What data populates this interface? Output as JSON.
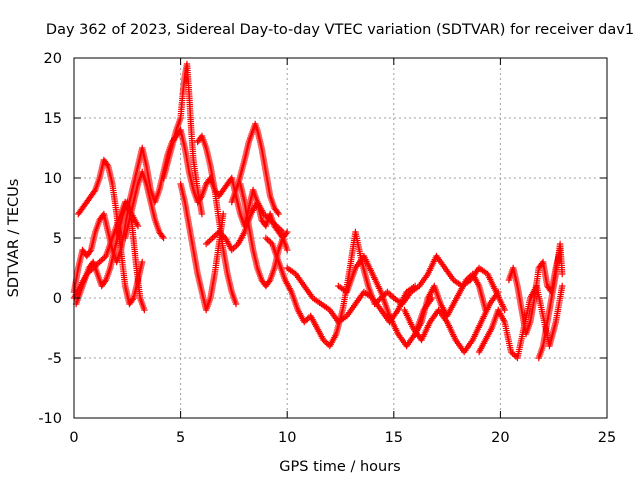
{
  "chart_data": {
    "type": "scatter",
    "title": "Day 362 of 2023, Sidereal Day-to-day VTEC variation (SDTVAR) for receiver dav1",
    "xlabel": "GPS time / hours",
    "ylabel": "SDTVAR / TECUs",
    "xlim": [
      0,
      25
    ],
    "ylim": [
      -10,
      20
    ],
    "xticks": [
      0,
      5,
      10,
      15,
      20,
      25
    ],
    "yticks": [
      -10,
      -5,
      0,
      5,
      10,
      15,
      20
    ],
    "grid": true,
    "marker": "+",
    "series": [
      {
        "name": "SDTVAR",
        "color": "#ff0000",
        "tracks": [
          {
            "x": [
              0.0,
              0.2,
              0.4,
              0.6,
              0.8,
              1.0,
              1.2,
              1.4,
              1.6,
              1.8,
              2.0,
              2.2,
              2.4,
              2.6,
              2.8,
              3.0,
              3.2,
              3.4,
              3.6,
              3.8,
              4.0,
              4.2,
              4.4,
              4.6,
              4.8,
              5.0,
              5.2,
              5.4,
              5.6,
              5.8,
              6.0,
              6.2,
              6.4,
              6.6,
              6.8,
              7.0,
              7.2,
              7.4,
              7.6,
              7.8,
              8.0,
              8.2,
              8.4,
              8.6,
              8.8,
              9.0,
              9.2,
              9.4,
              9.6,
              9.8,
              10.0
            ],
            "y": [
              0.5,
              2.5,
              4.0,
              3.5,
              4.0,
              5.5,
              6.5,
              7.0,
              5.5,
              4.0,
              3.0,
              4.0,
              6.0,
              8.0,
              9.5,
              11.0,
              12.5,
              11.0,
              9.0,
              8.0,
              9.0,
              10.5,
              12.0,
              13.0,
              13.5,
              14.0,
              12.5,
              10.5,
              9.0,
              8.0,
              8.5,
              9.5,
              10.0,
              9.0,
              8.5,
              9.0,
              9.5,
              10.0,
              8.5,
              7.0,
              6.0,
              7.5,
              9.0,
              8.0,
              6.5,
              6.0,
              7.0,
              6.0,
              5.5,
              5.0,
              4.0
            ]
          },
          {
            "x": [
              0.2,
              0.4,
              0.6,
              0.8,
              1.0,
              1.2,
              1.4,
              1.6,
              1.8,
              2.0,
              2.2,
              2.4,
              2.6,
              2.8,
              3.0,
              3.2
            ],
            "y": [
              7.0,
              7.5,
              8.0,
              8.5,
              9.0,
              10.0,
              11.5,
              11.0,
              9.5,
              7.0,
              4.0,
              1.0,
              -0.5,
              0.0,
              1.5,
              3.0
            ]
          },
          {
            "x": [
              0.1,
              0.3,
              0.5,
              0.7,
              0.9,
              1.1,
              1.3,
              1.5,
              1.7,
              1.9,
              2.1,
              2.3,
              2.5,
              2.7,
              2.9,
              3.1,
              3.3
            ],
            "y": [
              -0.5,
              0.5,
              1.5,
              2.5,
              3.0,
              2.0,
              1.0,
              1.5,
              2.5,
              4.0,
              5.5,
              7.0,
              8.0,
              6.5,
              3.0,
              0.0,
              -1.0
            ]
          },
          {
            "x": [
              0.0,
              0.3,
              0.6,
              0.9,
              1.2,
              1.5,
              1.8,
              2.1,
              2.4,
              2.7,
              3.0
            ],
            "y": [
              0.0,
              1.0,
              2.0,
              2.5,
              3.0,
              3.5,
              5.0,
              6.5,
              8.0,
              7.0,
              6.0
            ]
          },
          {
            "x": [
              2.4,
              2.6,
              2.8,
              3.0,
              3.2,
              3.4,
              3.6,
              3.8,
              4.0,
              4.2
            ],
            "y": [
              5.0,
              6.5,
              8.0,
              9.5,
              10.5,
              9.5,
              8.0,
              6.5,
              5.5,
              5.0
            ]
          },
          {
            "x": [
              4.2,
              4.5,
              4.8,
              5.0,
              5.1,
              5.2,
              5.3,
              5.4,
              5.5,
              5.6,
              5.8,
              6.0
            ],
            "y": [
              10.0,
              12.0,
              14.0,
              15.0,
              17.0,
              18.5,
              19.5,
              17.0,
              14.0,
              11.5,
              9.0,
              7.0
            ]
          },
          {
            "x": [
              5.0,
              5.2,
              5.4,
              5.6,
              5.8,
              6.0,
              6.2,
              6.4,
              6.6,
              6.8,
              7.0
            ],
            "y": [
              9.5,
              8.0,
              6.0,
              4.0,
              2.0,
              0.5,
              -1.0,
              0.0,
              2.0,
              4.5,
              7.0
            ]
          },
          {
            "x": [
              5.8,
              6.0,
              6.2,
              6.4,
              6.6,
              6.8,
              7.0,
              7.2,
              7.4,
              7.6
            ],
            "y": [
              13.0,
              13.5,
              12.5,
              11.0,
              9.0,
              6.5,
              4.0,
              2.0,
              0.5,
              -0.5
            ]
          },
          {
            "x": [
              6.2,
              6.5,
              6.8,
              7.1,
              7.4,
              7.7,
              8.0,
              8.3,
              8.6,
              8.9,
              9.2,
              9.5,
              9.8
            ],
            "y": [
              4.5,
              5.0,
              5.5,
              5.0,
              4.0,
              4.5,
              5.5,
              7.0,
              8.0,
              7.0,
              6.5,
              6.0,
              5.5
            ]
          },
          {
            "x": [
              7.4,
              7.7,
              8.0,
              8.2,
              8.4,
              8.5,
              8.6,
              8.8,
              9.0,
              9.2,
              9.4,
              9.6
            ],
            "y": [
              8.0,
              9.5,
              11.5,
              13.0,
              14.0,
              14.5,
              14.0,
              12.5,
              10.5,
              8.5,
              7.5,
              7.0
            ]
          },
          {
            "x": [
              7.8,
              8.0,
              8.2,
              8.4,
              8.6,
              8.8,
              9.0,
              9.2,
              9.4,
              9.6,
              9.8,
              10.0
            ],
            "y": [
              9.5,
              8.0,
              6.0,
              4.0,
              2.5,
              1.5,
              1.0,
              1.5,
              2.5,
              4.0,
              5.0,
              5.5
            ]
          },
          {
            "x": [
              9.0,
              9.3,
              9.6,
              9.9,
              10.2,
              10.5,
              10.8,
              11.1,
              11.4,
              11.7,
              12.0,
              12.3,
              12.6,
              12.9,
              13.2,
              13.5,
              13.8,
              14.1,
              14.4,
              14.7,
              15.0
            ],
            "y": [
              5.0,
              4.5,
              3.0,
              1.5,
              0.5,
              -1.0,
              -2.0,
              -1.5,
              -2.5,
              -3.5,
              -4.0,
              -3.0,
              -1.0,
              2.0,
              5.5,
              3.0,
              1.0,
              -0.5,
              0.0,
              0.5,
              0.0
            ]
          },
          {
            "x": [
              10.0,
              10.4,
              10.8,
              11.2,
              11.6,
              12.0,
              12.4,
              12.8,
              13.2,
              13.6,
              14.0,
              14.4,
              14.8,
              15.2,
              15.6,
              16.0
            ],
            "y": [
              2.5,
              2.0,
              1.0,
              0.0,
              -0.5,
              -1.0,
              -2.0,
              -1.5,
              -0.5,
              0.5,
              0.0,
              -1.0,
              -2.0,
              -1.0,
              0.5,
              1.0
            ]
          },
          {
            "x": [
              12.4,
              12.8,
              13.2,
              13.6,
              14.0,
              14.4,
              14.8,
              15.2,
              15.6,
              16.0,
              16.4,
              16.8
            ],
            "y": [
              1.0,
              0.5,
              2.5,
              3.5,
              2.0,
              0.5,
              -1.5,
              -3.0,
              -4.0,
              -3.0,
              -1.0,
              0.0
            ]
          },
          {
            "x": [
              15.0,
              15.4,
              15.8,
              16.2,
              16.6,
              17.0,
              17.4,
              17.8,
              18.2,
              18.6,
              19.0,
              19.4,
              19.8,
              20.2
            ],
            "y": [
              0.0,
              -0.5,
              0.5,
              1.0,
              2.0,
              3.5,
              2.5,
              1.5,
              1.0,
              1.5,
              2.5,
              2.0,
              0.5,
              -1.0
            ]
          },
          {
            "x": [
              15.5,
              15.9,
              16.3,
              16.7,
              17.1,
              17.5,
              17.9,
              18.3,
              18.7,
              19.1,
              19.5,
              19.9
            ],
            "y": [
              -1.0,
              -2.5,
              -3.5,
              -2.0,
              -1.0,
              -2.0,
              -3.5,
              -4.5,
              -3.5,
              -2.0,
              -0.5,
              0.5
            ]
          },
          {
            "x": [
              16.0,
              16.3,
              16.6,
              16.9,
              17.2,
              17.5,
              17.8,
              18.1,
              18.4,
              18.7,
              19.0,
              19.3
            ],
            "y": [
              -3.0,
              -2.0,
              0.0,
              1.0,
              -0.5,
              -1.5,
              -0.5,
              0.5,
              1.5,
              2.0,
              1.0,
              -1.0
            ]
          },
          {
            "x": [
              19.0,
              19.3,
              19.6,
              19.9,
              20.2,
              20.5,
              20.8,
              21.1,
              21.4,
              21.7,
              22.0,
              22.3,
              22.6,
              22.9
            ],
            "y": [
              -4.5,
              -3.5,
              -2.5,
              -1.0,
              -2.0,
              -4.5,
              -5.0,
              -2.5,
              0.0,
              1.0,
              -1.5,
              -4.0,
              -2.0,
              1.0
            ]
          },
          {
            "x": [
              20.4,
              20.6,
              20.8,
              21.0,
              21.2,
              21.4,
              21.6,
              21.8,
              22.0,
              22.2,
              22.4,
              22.6,
              22.8
            ],
            "y": [
              1.5,
              2.5,
              1.0,
              -1.0,
              -3.0,
              -2.0,
              0.0,
              2.5,
              3.0,
              1.0,
              0.5,
              2.5,
              4.0
            ]
          },
          {
            "x": [
              21.8,
              22.0,
              22.2,
              22.4,
              22.6,
              22.8,
              22.9
            ],
            "y": [
              -5.0,
              -4.0,
              -2.0,
              0.0,
              2.0,
              4.5,
              2.0
            ]
          }
        ]
      }
    ]
  }
}
